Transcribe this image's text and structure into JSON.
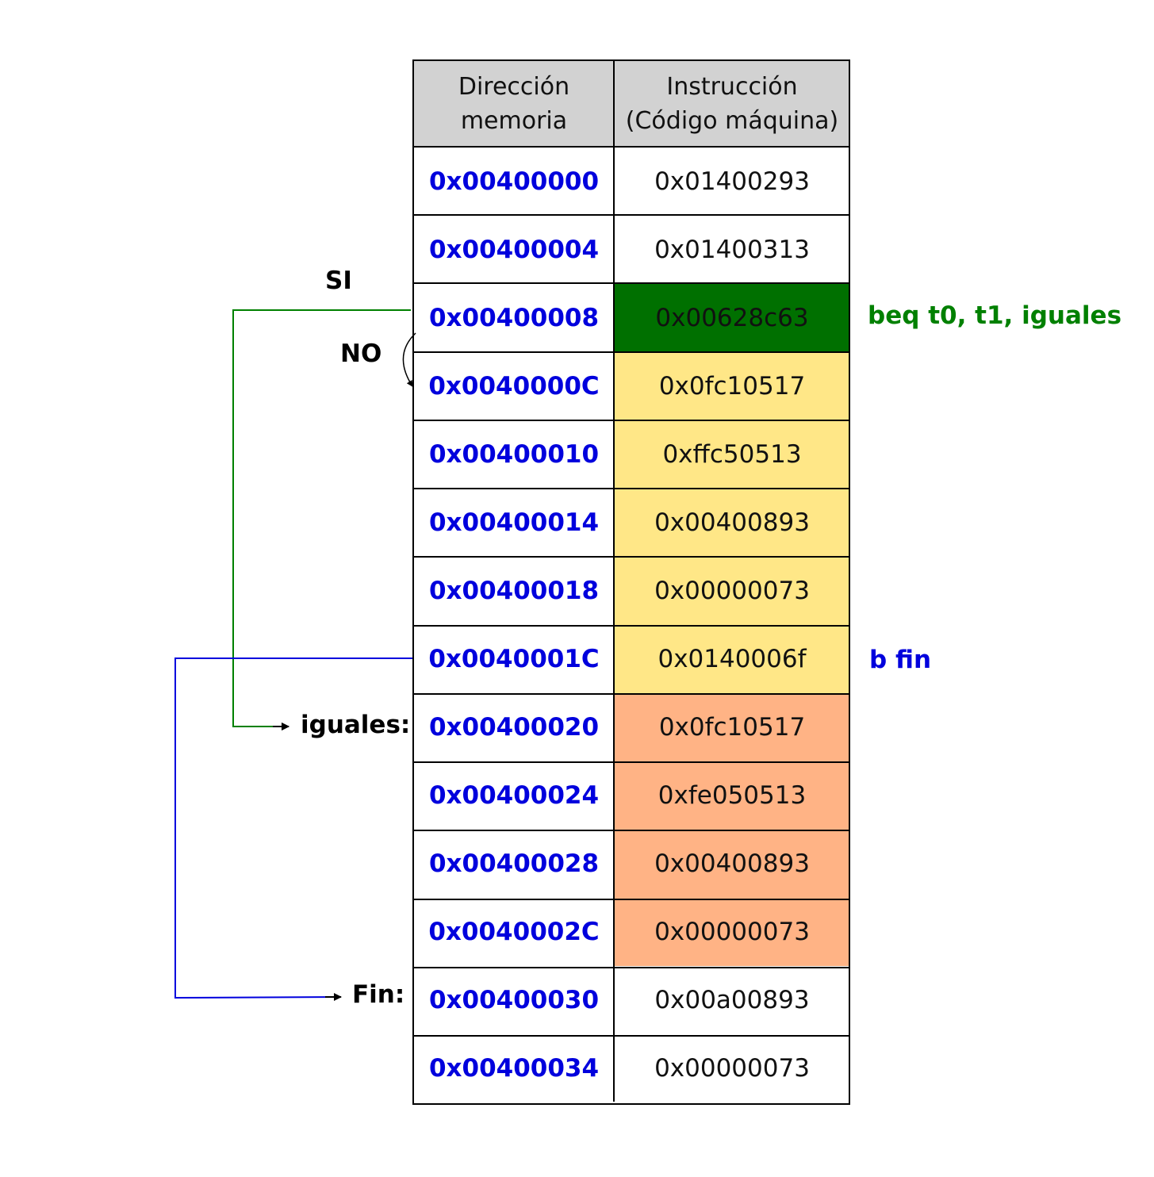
{
  "table": {
    "header_address": [
      "Dirección",
      "memoria"
    ],
    "header_instruction": [
      "Instrucción",
      "(Código máquina)"
    ],
    "rows": [
      {
        "address": "0x00400000",
        "instruction": "0x01400293",
        "fill": "#ffffff"
      },
      {
        "address": "0x00400004",
        "instruction": "0x01400313",
        "fill": "#ffffff"
      },
      {
        "address": "0x00400008",
        "instruction": "0x00628c63",
        "fill": "#007000"
      },
      {
        "address": "0x0040000C",
        "instruction": "0x0fc10517",
        "fill": "#ffe787"
      },
      {
        "address": "0x00400010",
        "instruction": "0xffc50513",
        "fill": "#ffe787"
      },
      {
        "address": "0x00400014",
        "instruction": "0x00400893",
        "fill": "#ffe787"
      },
      {
        "address": "0x00400018",
        "instruction": "0x00000073",
        "fill": "#ffe787"
      },
      {
        "address": "0x0040001C",
        "instruction": "0x0140006f",
        "fill": "#ffe787"
      },
      {
        "address": "0x00400020",
        "instruction": "0x0fc10517",
        "fill": "#ffb385"
      },
      {
        "address": "0x00400024",
        "instruction": "0xfe050513",
        "fill": "#ffb385"
      },
      {
        "address": "0x00400028",
        "instruction": "0x00400893",
        "fill": "#ffb385"
      },
      {
        "address": "0x0040002C",
        "instruction": "0x00000073",
        "fill": "#ffb385"
      },
      {
        "address": "0x00400030",
        "instruction": "0x00a00893",
        "fill": "#ffffff"
      },
      {
        "address": "0x00400034",
        "instruction": "0x00000073",
        "fill": "#ffffff"
      }
    ]
  },
  "labels": {
    "si": "SI",
    "no": "NO",
    "iguales": "iguales:",
    "fin": "Fin:",
    "beq": "beq t0, t1, iguales",
    "b_fin": "b fin"
  },
  "colors": {
    "branch_taken": "#008000",
    "jump": "#0000dd",
    "address_text": "#0000dd",
    "header_fill": "#d2d2d2"
  }
}
